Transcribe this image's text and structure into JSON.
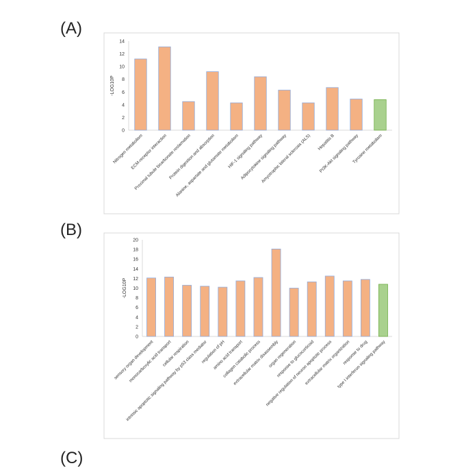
{
  "panels": {
    "a": "(A)",
    "b": "(B)",
    "c": "(C)"
  },
  "colors": {
    "bar": "#F4B183",
    "bar_edge": "#8FAADC",
    "highlight": "#A9D18E",
    "highlight_edge": "#70AD47"
  },
  "chart_data": [
    {
      "type": "bar",
      "title": "",
      "xlabel": "",
      "ylabel": "-LOG10P",
      "ylim": [
        0,
        14
      ],
      "yticks": [
        0,
        2,
        4,
        6,
        8,
        10,
        12,
        14
      ],
      "categories": [
        "Nitrogen metabolism",
        "ECM-receptor interaction",
        "Proximal tubule bicarbonate reclamation",
        "Protein digestion and absorption",
        "Alanine, aspartate and glutamate metabolism",
        "HIF-1 signaling pathway",
        "Adipocytokine signaling pathway",
        "Amyotrophic lateral sclerosis (ALS)",
        "Hepatitis B",
        "PI3K-Akt signaling pathway",
        "Tyrosine metabolism"
      ],
      "values": [
        11.2,
        13.1,
        4.5,
        9.2,
        4.3,
        8.4,
        6.3,
        4.3,
        6.7,
        4.9,
        4.8
      ],
      "highlight_index": 10
    },
    {
      "type": "bar",
      "title": "",
      "xlabel": "",
      "ylabel": "-LOG10P",
      "ylim": [
        0,
        20
      ],
      "yticks": [
        0,
        2,
        4,
        6,
        8,
        10,
        12,
        14,
        16,
        18,
        20
      ],
      "categories": [
        "sensory organ development",
        "monocarboxylic acid transport",
        "cellular respiration",
        "intrinsic apoptotic signaling pathway by p53 class mediator",
        "regulation of pH",
        "amino acid transport",
        "collagen catabolic process",
        "extracellular matrix disassembly",
        "organ regeneration",
        "response to glucocorticoid",
        "negative regulation of neuron apoptotic process",
        "extracellular matrix organization",
        "response to drug",
        "type I interferon signaling pathway"
      ],
      "values": [
        12.1,
        12.3,
        10.6,
        10.4,
        10.2,
        11.5,
        12.2,
        18.1,
        10.0,
        11.3,
        12.5,
        11.5,
        11.8,
        10.8
      ],
      "highlight_index": 13
    }
  ]
}
